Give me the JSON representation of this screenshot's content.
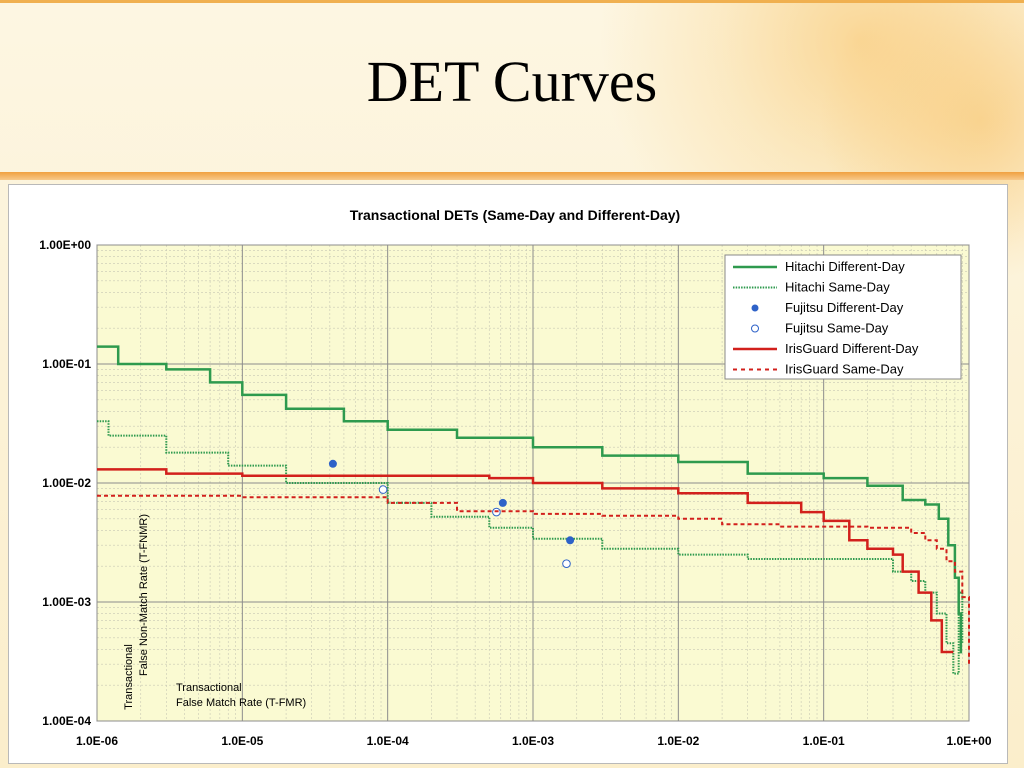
{
  "slide": {
    "title": "DET Curves"
  },
  "chart_data": {
    "type": "line",
    "title": "Transactional DETs (Same-Day and Different-Day)",
    "xlabel": [
      "Transactional",
      "False Match Rate (T-FMR)"
    ],
    "ylabel": [
      "Transactional",
      "False Non-Match Rate (T-FNMR)"
    ],
    "x_scale": "log",
    "y_scale": "log",
    "xlim": [
      1e-06,
      1
    ],
    "ylim": [
      0.0001,
      1
    ],
    "x_ticks": [
      "1.0E-06",
      "1.0E-05",
      "1.0E-04",
      "1.0E-03",
      "1.0E-02",
      "1.0E-01",
      "1.0E+00"
    ],
    "y_ticks": [
      "1.00E+00",
      "1.00E-01",
      "1.00E-02",
      "1.00E-03",
      "1.00E-04"
    ],
    "grid": true,
    "legend_position": "top-right",
    "colors": {
      "green": "#2e9a4e",
      "red": "#d2201c",
      "blue": "#2e62c8",
      "plot_bg": "#fafad2"
    },
    "series": [
      {
        "name": "Hitachi Different-Day",
        "style": "solid",
        "color": "#2e9a4e",
        "x": [
          1e-06,
          1.4e-06,
          1.4e-06,
          3e-06,
          6e-06,
          1e-05,
          2e-05,
          5e-05,
          0.0001,
          0.0003,
          0.001,
          0.003,
          0.01,
          0.03,
          0.1,
          0.2,
          0.35,
          0.5,
          0.62,
          0.72,
          0.8,
          0.85,
          0.88
        ],
        "y": [
          0.14,
          0.14,
          0.1,
          0.09,
          0.07,
          0.055,
          0.042,
          0.033,
          0.028,
          0.024,
          0.02,
          0.017,
          0.015,
          0.012,
          0.011,
          0.0095,
          0.0072,
          0.0066,
          0.005,
          0.003,
          0.0016,
          0.0008,
          0.00037
        ]
      },
      {
        "name": "Hitachi Same-Day",
        "style": "dotted",
        "color": "#2e9a4e",
        "x": [
          1e-06,
          1.2e-06,
          3e-06,
          8e-06,
          2e-05,
          0.0001,
          0.0002,
          0.0005,
          0.001,
          0.003,
          0.01,
          0.03,
          0.1,
          0.2,
          0.3,
          0.4,
          0.5,
          0.6,
          0.7,
          0.78,
          0.85,
          0.9
        ],
        "y": [
          0.033,
          0.025,
          0.018,
          0.014,
          0.01,
          0.0068,
          0.0052,
          0.0042,
          0.0034,
          0.0028,
          0.0025,
          0.0023,
          0.0023,
          0.0023,
          0.0018,
          0.0015,
          0.0012,
          0.0008,
          0.00045,
          0.00025,
          0.0012,
          0.00045
        ]
      },
      {
        "name": "Fujitsu Different-Day",
        "style": "filled-marker",
        "color": "#2e62c8",
        "x": [
          4.2e-05,
          0.00062,
          0.0018
        ],
        "y": [
          0.0145,
          0.0068,
          0.0033
        ]
      },
      {
        "name": "Fujitsu Same-Day",
        "style": "hollow-marker",
        "color": "#2e62c8",
        "x": [
          9.3e-05,
          0.00056,
          0.0017
        ],
        "y": [
          0.0088,
          0.0057,
          0.0021
        ]
      },
      {
        "name": "IrisGuard Different-Day",
        "style": "solid",
        "color": "#d2201c",
        "x": [
          1e-06,
          3e-06,
          1e-05,
          0.0001,
          0.0005,
          0.001,
          0.003,
          0.01,
          0.03,
          0.07,
          0.1,
          0.15,
          0.2,
          0.3,
          0.35,
          0.45,
          0.55,
          0.65,
          0.78
        ],
        "y": [
          0.013,
          0.012,
          0.0115,
          0.0115,
          0.011,
          0.01,
          0.009,
          0.0082,
          0.0068,
          0.0057,
          0.0048,
          0.0033,
          0.0028,
          0.0025,
          0.0018,
          0.0012,
          0.0007,
          0.00038,
          0.00038
        ]
      },
      {
        "name": "IrisGuard Same-Day",
        "style": "dashed",
        "color": "#d2201c",
        "x": [
          1e-06,
          1e-05,
          0.0001,
          0.0003,
          0.001,
          0.003,
          0.01,
          0.02,
          0.05,
          0.1,
          0.2,
          0.4,
          0.5,
          0.6,
          0.7,
          0.8,
          0.9,
          1
        ],
        "y": [
          0.0078,
          0.0076,
          0.0068,
          0.0058,
          0.0055,
          0.0053,
          0.005,
          0.0045,
          0.0043,
          0.0043,
          0.0042,
          0.0038,
          0.0033,
          0.0028,
          0.0022,
          0.0018,
          0.0011,
          0.00029
        ]
      }
    ]
  }
}
